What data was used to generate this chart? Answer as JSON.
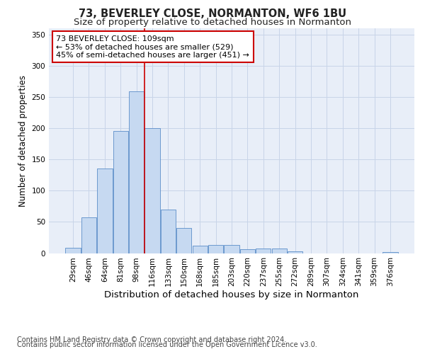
{
  "title": "73, BEVERLEY CLOSE, NORMANTON, WF6 1BU",
  "subtitle": "Size of property relative to detached houses in Normanton",
  "xlabel": "Distribution of detached houses by size in Normanton",
  "ylabel": "Number of detached properties",
  "categories": [
    "29sqm",
    "46sqm",
    "64sqm",
    "81sqm",
    "98sqm",
    "116sqm",
    "133sqm",
    "150sqm",
    "168sqm",
    "185sqm",
    "203sqm",
    "220sqm",
    "237sqm",
    "255sqm",
    "272sqm",
    "289sqm",
    "307sqm",
    "324sqm",
    "341sqm",
    "359sqm",
    "376sqm"
  ],
  "values": [
    9,
    57,
    136,
    196,
    259,
    200,
    70,
    40,
    12,
    13,
    13,
    6,
    7,
    7,
    3,
    0,
    0,
    0,
    0,
    0,
    2
  ],
  "bar_color": "#c6d9f1",
  "bar_edge_color": "#5b8dc8",
  "vline_x_index": 5,
  "vline_color": "#cc0000",
  "annotation_text": "73 BEVERLEY CLOSE: 109sqm\n← 53% of detached houses are smaller (529)\n45% of semi-detached houses are larger (451) →",
  "annotation_box_facecolor": "#ffffff",
  "annotation_box_edgecolor": "#cc0000",
  "grid_color": "#c8d4e8",
  "background_color": "#e8eef8",
  "ylim": [
    0,
    360
  ],
  "yticks": [
    0,
    50,
    100,
    150,
    200,
    250,
    300,
    350
  ],
  "footer_line1": "Contains HM Land Registry data © Crown copyright and database right 2024.",
  "footer_line2": "Contains public sector information licensed under the Open Government Licence v3.0.",
  "title_fontsize": 10.5,
  "subtitle_fontsize": 9.5,
  "xlabel_fontsize": 9.5,
  "ylabel_fontsize": 8.5,
  "tick_fontsize": 7.5,
  "annotation_fontsize": 8,
  "footer_fontsize": 7
}
